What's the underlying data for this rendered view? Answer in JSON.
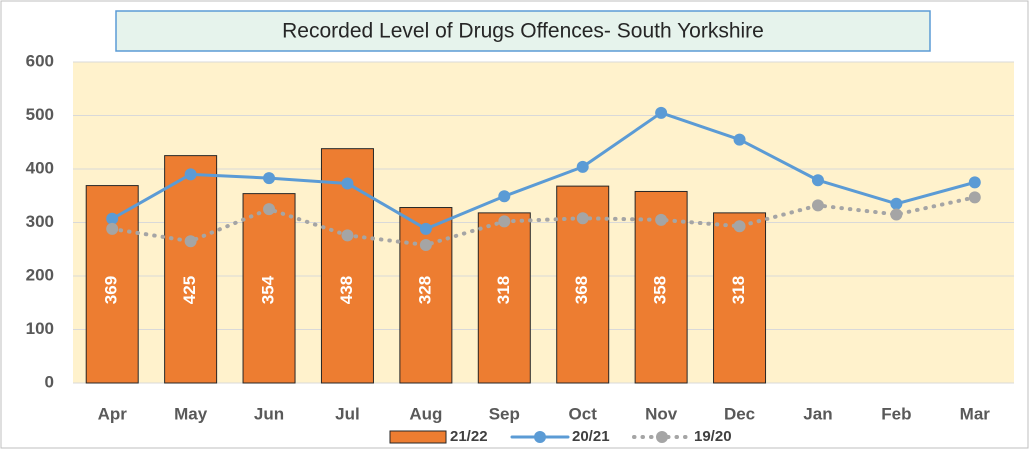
{
  "chart_data": {
    "type": "combo",
    "title": "Recorded Level of Drugs Offences- South Yorkshire",
    "categories": [
      "Apr",
      "May",
      "Jun",
      "Jul",
      "Aug",
      "Sep",
      "Oct",
      "Nov",
      "Dec",
      "Jan",
      "Feb",
      "Mar"
    ],
    "series": [
      {
        "name": "21/22",
        "type": "bar",
        "color": "#ed7d31",
        "values": [
          369,
          425,
          354,
          438,
          328,
          318,
          368,
          358,
          318,
          null,
          null,
          null
        ]
      },
      {
        "name": "20/21",
        "type": "line",
        "color": "#5b9bd5",
        "values": [
          307,
          390,
          383,
          373,
          288,
          349,
          404,
          505,
          455,
          379,
          335,
          375
        ]
      },
      {
        "name": "19/20",
        "type": "dotted-line",
        "color": "#a5a5a5",
        "values": [
          288,
          265,
          325,
          276,
          258,
          302,
          308,
          305,
          293,
          332,
          315,
          347
        ]
      }
    ],
    "ylim": [
      0,
      600
    ],
    "yticks": [
      0,
      100,
      200,
      300,
      400,
      500,
      600
    ],
    "grid": true,
    "legend": "bottom"
  }
}
